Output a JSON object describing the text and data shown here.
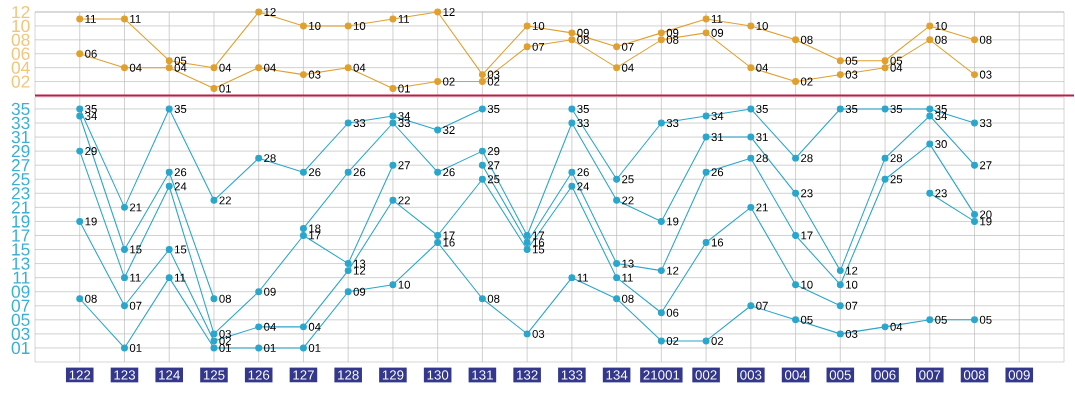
{
  "chart_data": [
    {
      "type": "line",
      "categories": [
        "122",
        "123",
        "124",
        "125",
        "126",
        "127",
        "128",
        "129",
        "130",
        "131",
        "132",
        "133",
        "134",
        "21001",
        "002",
        "003",
        "004",
        "005",
        "006",
        "007",
        "008",
        "009"
      ],
      "tick_labels": "y",
      "grid": true,
      "marker": "circle",
      "ylim": [
        0,
        12
      ],
      "yticks": [
        {
          "value": 2,
          "label": "02"
        },
        {
          "value": 4,
          "label": "04"
        },
        {
          "value": 6,
          "label": "06"
        },
        {
          "value": 8,
          "label": "08"
        },
        {
          "value": 10,
          "label": "10"
        },
        {
          "value": 12,
          "label": "12"
        }
      ],
      "series": [
        {
          "color": "#e0a02e",
          "values": [
            11,
            11,
            5,
            4,
            12,
            10,
            10,
            11,
            12,
            3,
            10,
            9,
            7,
            9,
            11,
            10,
            8,
            5,
            5,
            10,
            8,
            null
          ],
          "value_labels": [
            "11",
            "11",
            "05",
            "04",
            "12",
            "10",
            "10",
            "11",
            "12",
            "03",
            "10",
            "09",
            "07",
            "09",
            "11",
            "10",
            "08",
            "05",
            "05",
            "10",
            "08",
            null
          ]
        },
        {
          "color": "#e0a02e",
          "values": [
            6,
            4,
            4,
            1,
            4,
            3,
            4,
            1,
            2,
            2,
            7,
            8,
            4,
            8,
            9,
            4,
            2,
            3,
            4,
            8,
            3,
            null
          ],
          "value_labels": [
            "06",
            "04",
            "04",
            "01",
            "04",
            "03",
            "04",
            "01",
            "02",
            "02",
            "07",
            "08",
            "04",
            "08",
            "09",
            "04",
            "02",
            "03",
            "04",
            "08",
            "03",
            null
          ]
        }
      ]
    },
    {
      "type": "line",
      "categories": [
        "122",
        "123",
        "124",
        "125",
        "126",
        "127",
        "128",
        "129",
        "130",
        "131",
        "132",
        "133",
        "134",
        "21001",
        "002",
        "003",
        "004",
        "005",
        "006",
        "007",
        "008",
        "009"
      ],
      "grid": true,
      "marker": "circle",
      "ylim": [
        -1,
        36.7
      ],
      "yticks": [
        {
          "value": 1,
          "label": "01"
        },
        {
          "value": 3,
          "label": "03"
        },
        {
          "value": 5,
          "label": "05"
        },
        {
          "value": 7,
          "label": "07"
        },
        {
          "value": 9,
          "label": "09"
        },
        11,
        13,
        15,
        17,
        19,
        21,
        23,
        25,
        27,
        29,
        31,
        33,
        35
      ],
      "series": [
        {
          "color": "#2aa6cc",
          "values": [
            35,
            21,
            35,
            22,
            28,
            26,
            33,
            34,
            32,
            35,
            null,
            35,
            25,
            33,
            34,
            35,
            28,
            35,
            35,
            35,
            33,
            null
          ],
          "value_labels": [
            "35",
            "21",
            "35",
            "22",
            "28",
            "26",
            "33",
            "34",
            "32",
            "35",
            null,
            "35",
            "25",
            "33",
            "34",
            "35",
            "28",
            "35",
            "35",
            "35",
            "33",
            null
          ]
        },
        {
          "color": "#2aa6cc",
          "values": [
            34,
            15,
            26,
            8,
            null,
            18,
            26,
            33,
            26,
            29,
            17,
            33,
            22,
            19,
            31,
            31,
            23,
            12,
            28,
            34,
            27,
            null
          ],
          "value_labels": [
            "34",
            "15",
            "26",
            "08",
            null,
            "18",
            "26",
            "33",
            "26",
            "29",
            "17",
            "33",
            "22",
            "19",
            "31",
            "31",
            "23",
            "12",
            "28",
            "34",
            "27",
            null
          ]
        },
        {
          "color": "#2aa6cc",
          "values": [
            29,
            11,
            24,
            3,
            9,
            17,
            13,
            27,
            null,
            27,
            16,
            26,
            13,
            12,
            26,
            28,
            17,
            10,
            25,
            30,
            20,
            null
          ],
          "value_labels": [
            "29",
            "11",
            "24",
            "03",
            "09",
            "17",
            "13",
            "27",
            null,
            "27",
            "16",
            "26",
            "13",
            "12",
            "26",
            "28",
            "17",
            "10",
            "25",
            "30",
            "20",
            null
          ]
        },
        {
          "color": "#2aa6cc",
          "values": [
            19,
            7,
            15,
            2,
            4,
            4,
            12,
            22,
            17,
            25,
            15,
            24,
            11,
            6,
            16,
            21,
            10,
            7,
            null,
            23,
            19,
            null
          ],
          "value_labels": [
            "19",
            "07",
            "15",
            "02",
            "04",
            "04",
            "12",
            "22",
            "17",
            "25",
            "15",
            "24",
            "11",
            "06",
            "16",
            "21",
            "10",
            "07",
            null,
            "23",
            "19",
            null
          ]
        },
        {
          "color": "#2aa6cc",
          "values": [
            8,
            1,
            11,
            1,
            1,
            1,
            9,
            10,
            16,
            8,
            3,
            11,
            8,
            2,
            2,
            7,
            5,
            3,
            4,
            5,
            5,
            null
          ],
          "value_labels": [
            "08",
            "01",
            "11",
            "01",
            "01",
            "01",
            "09",
            "10",
            "16",
            "08",
            "03",
            "11",
            "08",
            "02",
            "02",
            "07",
            "05",
            "03",
            "04",
            "05",
            "05",
            null
          ]
        }
      ]
    }
  ]
}
